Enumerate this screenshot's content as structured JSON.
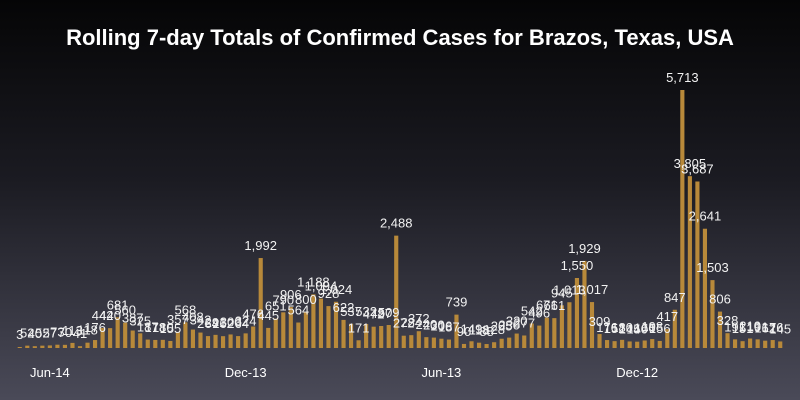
{
  "chart_data": {
    "type": "bar",
    "title": "Rolling 7-day Totals of Confirmed Cases for Brazos, Texas, USA",
    "xlabel": "",
    "ylabel": "",
    "ylim": [
      0,
      6000
    ],
    "grid": false,
    "legend": "none",
    "bar_color": "#b8893a",
    "x_tick_labels": [
      {
        "label": "Jun-14",
        "index": 4
      },
      {
        "label": "Dec-13",
        "index": 30
      },
      {
        "label": "Jun-13",
        "index": 56
      },
      {
        "label": "Dec-12",
        "index": 82
      }
    ],
    "values": [
      3,
      52,
      40,
      52,
      57,
      73,
      70,
      113,
      41,
      118,
      176,
      442,
      440,
      681,
      560,
      387,
      325,
      187,
      178,
      180,
      155,
      357,
      568,
      408,
      342,
      264,
      291,
      262,
      300,
      264,
      324,
      476,
      1992,
      445,
      651,
      790,
      906,
      564,
      800,
      1188,
      1094,
      928,
      1024,
      622,
      537,
      171,
      532,
      472,
      487,
      509,
      2488,
      272,
      284,
      372,
      240,
      230,
      206,
      187,
      739,
      90,
      149,
      118,
      88,
      128,
      205,
      230,
      320,
      277,
      542,
      496,
      671,
      661,
      945,
      1013,
      1550,
      1929,
      1017,
      309,
      176,
      152,
      180,
      145,
      140,
      166,
      198,
      156,
      417,
      847,
      5713,
      3805,
      3687,
      2641,
      1503,
      806,
      328,
      191,
      151,
      210,
      191,
      162,
      176,
      145
    ],
    "data_labels": [
      "3",
      "52",
      "40",
      "52",
      "57",
      "73",
      "70",
      "113",
      "41",
      "118",
      "176",
      "442",
      "440",
      "681",
      "560",
      "387",
      "325",
      "187",
      "178",
      "180",
      "155",
      "357",
      "568",
      "408",
      "342",
      "264",
      "291",
      "262",
      "300",
      "264",
      "324",
      "476",
      "1,992",
      "445",
      "651",
      "790",
      "906",
      "564",
      "800",
      "1,188",
      "1,094",
      "928",
      "1,024",
      "622",
      "537",
      "171",
      "532",
      "472",
      "487",
      "509",
      "2,488",
      "272",
      "284",
      "372",
      "240",
      "230",
      "206",
      "187",
      "739",
      "90",
      "149",
      "118",
      "88",
      "128",
      "205",
      "230",
      "320",
      "277",
      "542",
      "496",
      "671",
      "661",
      "945",
      "1,013",
      "1,550",
      "1,929",
      "1,017",
      "309",
      "176",
      "152",
      "180",
      "145",
      "140",
      "166",
      "198",
      "156",
      "417",
      "847",
      "5,713",
      "3,805",
      "3,687",
      "2,641",
      "1,503",
      "806",
      "328",
      "191",
      "151",
      "210",
      "191",
      "162",
      "176",
      "145"
    ]
  }
}
